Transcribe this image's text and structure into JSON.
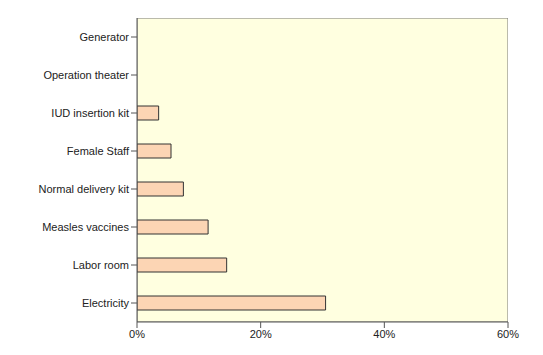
{
  "chart_data": {
    "type": "bar",
    "orientation": "horizontal",
    "categories": [
      "Generator",
      "Operation theater",
      "IUD insertion kit",
      "Female Staff",
      "Normal delivery kit",
      "Measles vaccines",
      "Labor room",
      "Electricity"
    ],
    "values": [
      0,
      0,
      3.5,
      5.5,
      7.5,
      11.5,
      14.5,
      30.5
    ],
    "color": "#fcd5b4",
    "xlim": [
      0,
      60
    ],
    "xticks": [
      {
        "value": 0,
        "label": "0%"
      },
      {
        "value": 20,
        "label": "20%"
      },
      {
        "value": 40,
        "label": "40%"
      },
      {
        "value": 60,
        "label": "60%"
      }
    ],
    "grid": false
  }
}
